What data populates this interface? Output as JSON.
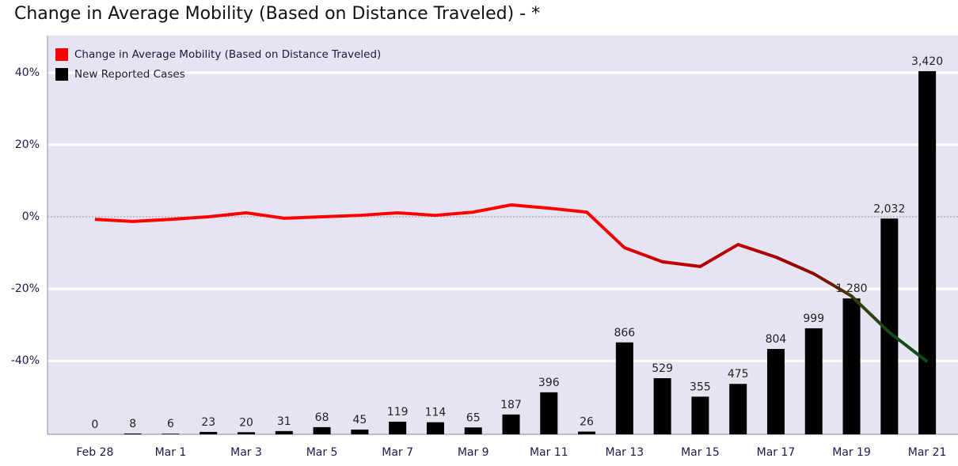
{
  "chart_data": {
    "type": "bar-line",
    "title": "Change in Average Mobility (Based on Distance Traveled) -  *",
    "categories": [
      "Feb 28",
      null,
      "Mar 1",
      null,
      "Mar 3",
      null,
      "Mar 5",
      null,
      "Mar 7",
      null,
      "Mar 9",
      null,
      "Mar 11",
      null,
      "Mar 13",
      null,
      "Mar 15",
      null,
      "Mar 17",
      null,
      "Mar 19",
      null,
      "Mar 21"
    ],
    "series": [
      {
        "name": "Change in Average Mobility (Based on Distance Traveled)",
        "type": "line",
        "color": "#ff0000",
        "values": [
          -0.7,
          -1.3,
          -0.7,
          0,
          1.1,
          -0.4,
          0,
          0.4,
          1.1,
          0.4,
          1.3,
          3.3,
          2.4,
          1.3,
          -8.6,
          -12.5,
          -13.8,
          -7.7,
          -11.2,
          -15.8,
          -22.0,
          -32.1,
          -40.2
        ],
        "point_colors": [
          "#ff0000",
          "#ff0000",
          "#ff0000",
          "#ff0000",
          "#ff0000",
          "#ff0000",
          "#ff0000",
          "#ff0000",
          "#ff0000",
          "#ff0000",
          "#ff0000",
          "#ff0000",
          "#ff0000",
          "#ff0000",
          "#e60000",
          "#c40000",
          "#b30000",
          "#c00000",
          "#a00000",
          "#8a0800",
          "#3d3a0a",
          "#1a4a1a",
          "#0d4d20"
        ]
      },
      {
        "name": "New Reported Cases",
        "type": "bar",
        "color": "#000000",
        "axis": "y2",
        "values": [
          0,
          8,
          6,
          23,
          20,
          31,
          68,
          45,
          119,
          114,
          65,
          187,
          396,
          26,
          866,
          529,
          355,
          475,
          804,
          999,
          1280,
          2032,
          3420
        ],
        "value_labels": [
          "0",
          "8",
          "6",
          "23",
          "20",
          "31",
          "68",
          "45",
          "119",
          "114",
          "65",
          "187",
          "396",
          "26",
          "866",
          "529",
          "355",
          "475",
          "804",
          "999",
          "1,280",
          "2,032",
          "3,420"
        ]
      }
    ],
    "ylim": [
      -60.4,
      50.3
    ],
    "yticks": [
      {
        "value": 40,
        "label": "40%"
      },
      {
        "value": 20,
        "label": "20%"
      },
      {
        "value": 0,
        "label": "0%"
      },
      {
        "value": -20,
        "label": "-20%"
      },
      {
        "value": -40,
        "label": "-40%"
      }
    ],
    "y2lim": [
      0,
      3755
    ],
    "grid": true,
    "legend": "top-left"
  }
}
